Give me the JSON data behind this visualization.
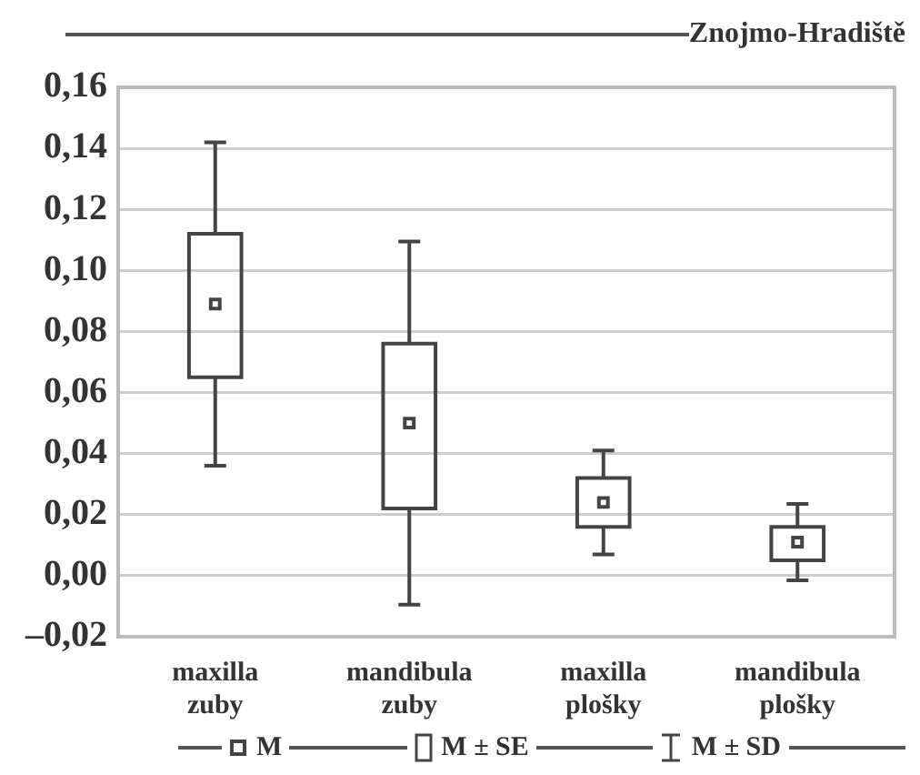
{
  "chart_data": {
    "type": "box",
    "title": "Znojmo-Hradiště",
    "categories": [
      "maxilla zuby",
      "mandibula zuby",
      "maxilla plošky",
      "mandibula plošky"
    ],
    "series": [
      {
        "color": "#444444",
        "boxes": [
          {
            "low": 0.036,
            "q1": 0.065,
            "q3": 0.112,
            "high": 0.142,
            "mean": 0.089
          },
          {
            "low": -0.0095,
            "q1": 0.022,
            "q3": 0.076,
            "high": 0.1095,
            "mean": 0.05
          },
          {
            "low": 0.007,
            "q1": 0.016,
            "q3": 0.032,
            "high": 0.041,
            "mean": 0.024
          },
          {
            "low": -0.0015,
            "q1": 0.005,
            "q3": 0.016,
            "high": 0.0235,
            "mean": 0.011
          }
        ]
      }
    ],
    "annotations": [
      "M",
      "M ± SE",
      "M ± SD"
    ],
    "ylim": [
      -0.02,
      0.16
    ],
    "yticks": [
      {
        "value": -0.02,
        "label": "–0,02"
      },
      {
        "value": 0,
        "label": "0,00"
      },
      {
        "value": 0.02,
        "label": "0,02"
      },
      {
        "value": 0.04,
        "label": "0,04"
      },
      {
        "value": 0.06,
        "label": "0,06"
      },
      {
        "value": 0.08,
        "label": "0,08"
      },
      {
        "value": 0.1,
        "label": "0,10"
      },
      {
        "value": 0.12,
        "label": "0,12"
      },
      {
        "value": 0.14,
        "label": "0,14"
      },
      {
        "value": 0.16,
        "label": "0,16"
      }
    ],
    "grid": "y"
  }
}
